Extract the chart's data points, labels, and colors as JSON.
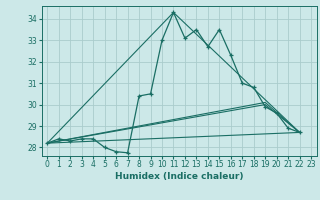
{
  "title": "",
  "xlabel": "Humidex (Indice chaleur)",
  "bg_color": "#cce8e8",
  "grid_color": "#aacccc",
  "line_color": "#1a6e64",
  "xlim": [
    -0.5,
    23.5
  ],
  "ylim": [
    27.6,
    34.6
  ],
  "xticks": [
    0,
    1,
    2,
    3,
    4,
    5,
    6,
    7,
    8,
    9,
    10,
    11,
    12,
    13,
    14,
    15,
    16,
    17,
    18,
    19,
    20,
    21,
    22,
    23
  ],
  "yticks": [
    28,
    29,
    30,
    31,
    32,
    33,
    34
  ],
  "main_line": [
    [
      0,
      28.2
    ],
    [
      1,
      28.4
    ],
    [
      2,
      28.3
    ],
    [
      3,
      28.4
    ],
    [
      4,
      28.4
    ],
    [
      5,
      28.0
    ],
    [
      6,
      27.8
    ],
    [
      7,
      27.75
    ],
    [
      8,
      30.4
    ],
    [
      9,
      30.5
    ],
    [
      10,
      33.0
    ],
    [
      11,
      34.3
    ],
    [
      12,
      33.1
    ],
    [
      13,
      33.5
    ],
    [
      14,
      32.7
    ],
    [
      15,
      33.5
    ],
    [
      16,
      32.3
    ],
    [
      17,
      31.0
    ],
    [
      18,
      30.8
    ],
    [
      19,
      29.9
    ],
    [
      20,
      29.6
    ],
    [
      21,
      28.9
    ],
    [
      22,
      28.7
    ]
  ],
  "extra_lines": [
    [
      [
        0,
        28.2
      ],
      [
        22,
        28.7
      ]
    ],
    [
      [
        0,
        28.2
      ],
      [
        19,
        30.0
      ],
      [
        22,
        28.7
      ]
    ],
    [
      [
        0,
        28.2
      ],
      [
        11,
        34.3
      ],
      [
        22,
        28.7
      ]
    ],
    [
      [
        0,
        28.2
      ],
      [
        8,
        29.0
      ],
      [
        19,
        30.1
      ],
      [
        22,
        28.7
      ]
    ]
  ]
}
